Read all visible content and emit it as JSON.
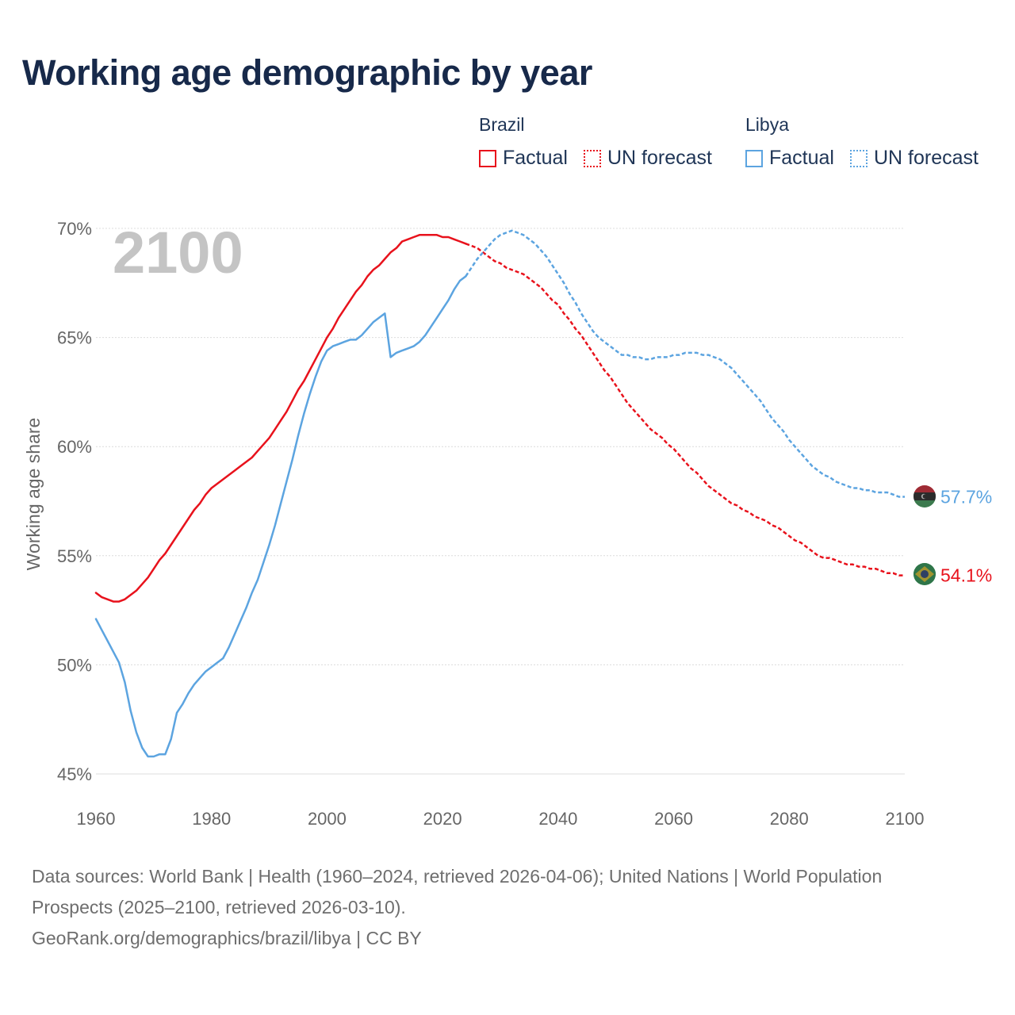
{
  "title": "Working age demographic by year",
  "legend": {
    "groups": [
      {
        "country": "Brazil",
        "color": "#e8121c",
        "factual_label": "Factual",
        "forecast_label": "UN forecast"
      },
      {
        "country": "Libya",
        "color": "#5ca4e0",
        "factual_label": "Factual",
        "forecast_label": "UN forecast"
      }
    ]
  },
  "footer": {
    "sources": "Data sources: World Bank | Health (1960–2024, retrieved 2026-04-06); United Nations | World Population Prospects (2025–2100, retrieved 2026-03-10).",
    "attribution": "GeoRank.org/demographics/brazil/libya | CC BY"
  },
  "chart_data": {
    "type": "line",
    "title": "Working age demographic by year",
    "xlabel": "",
    "ylabel": "Working age share",
    "current_year": "2100",
    "xlim": [
      1960,
      2100
    ],
    "ylim": [
      45,
      70
    ],
    "x_ticks": [
      1960,
      1980,
      2000,
      2020,
      2040,
      2060,
      2080,
      2100
    ],
    "y_ticks": [
      45,
      50,
      55,
      60,
      65,
      70
    ],
    "y_tick_labels": [
      "45%",
      "50%",
      "55%",
      "60%",
      "65%",
      "70%"
    ],
    "grid": true,
    "factual_end_year": 2024,
    "series": [
      {
        "name": "Brazil",
        "color": "#e8121c",
        "end_label": "54.1%",
        "points": [
          [
            1960,
            53.3
          ],
          [
            1961,
            53.1
          ],
          [
            1962,
            53.0
          ],
          [
            1963,
            52.9
          ],
          [
            1964,
            52.9
          ],
          [
            1965,
            53.0
          ],
          [
            1966,
            53.2
          ],
          [
            1967,
            53.4
          ],
          [
            1968,
            53.7
          ],
          [
            1969,
            54.0
          ],
          [
            1970,
            54.4
          ],
          [
            1971,
            54.8
          ],
          [
            1972,
            55.1
          ],
          [
            1973,
            55.5
          ],
          [
            1974,
            55.9
          ],
          [
            1975,
            56.3
          ],
          [
            1976,
            56.7
          ],
          [
            1977,
            57.1
          ],
          [
            1978,
            57.4
          ],
          [
            1979,
            57.8
          ],
          [
            1980,
            58.1
          ],
          [
            1981,
            58.3
          ],
          [
            1982,
            58.5
          ],
          [
            1983,
            58.7
          ],
          [
            1984,
            58.9
          ],
          [
            1985,
            59.1
          ],
          [
            1986,
            59.3
          ],
          [
            1987,
            59.5
          ],
          [
            1988,
            59.8
          ],
          [
            1989,
            60.1
          ],
          [
            1990,
            60.4
          ],
          [
            1991,
            60.8
          ],
          [
            1992,
            61.2
          ],
          [
            1993,
            61.6
          ],
          [
            1994,
            62.1
          ],
          [
            1995,
            62.6
          ],
          [
            1996,
            63.0
          ],
          [
            1997,
            63.5
          ],
          [
            1998,
            64.0
          ],
          [
            1999,
            64.5
          ],
          [
            2000,
            65.0
          ],
          [
            2001,
            65.4
          ],
          [
            2002,
            65.9
          ],
          [
            2003,
            66.3
          ],
          [
            2004,
            66.7
          ],
          [
            2005,
            67.1
          ],
          [
            2006,
            67.4
          ],
          [
            2007,
            67.8
          ],
          [
            2008,
            68.1
          ],
          [
            2009,
            68.3
          ],
          [
            2010,
            68.6
          ],
          [
            2011,
            68.9
          ],
          [
            2012,
            69.1
          ],
          [
            2013,
            69.4
          ],
          [
            2014,
            69.5
          ],
          [
            2015,
            69.6
          ],
          [
            2016,
            69.7
          ],
          [
            2017,
            69.7
          ],
          [
            2018,
            69.7
          ],
          [
            2019,
            69.7
          ],
          [
            2020,
            69.6
          ],
          [
            2021,
            69.6
          ],
          [
            2022,
            69.5
          ],
          [
            2023,
            69.4
          ],
          [
            2024,
            69.3
          ],
          [
            2025,
            69.2
          ],
          [
            2026,
            69.1
          ],
          [
            2027,
            68.9
          ],
          [
            2028,
            68.7
          ],
          [
            2029,
            68.5
          ],
          [
            2030,
            68.4
          ],
          [
            2031,
            68.2
          ],
          [
            2032,
            68.1
          ],
          [
            2033,
            68.0
          ],
          [
            2034,
            67.9
          ],
          [
            2035,
            67.7
          ],
          [
            2036,
            67.5
          ],
          [
            2037,
            67.3
          ],
          [
            2038,
            67.0
          ],
          [
            2039,
            66.7
          ],
          [
            2040,
            66.5
          ],
          [
            2041,
            66.1
          ],
          [
            2042,
            65.8
          ],
          [
            2043,
            65.4
          ],
          [
            2044,
            65.1
          ],
          [
            2045,
            64.7
          ],
          [
            2046,
            64.3
          ],
          [
            2047,
            63.9
          ],
          [
            2048,
            63.5
          ],
          [
            2049,
            63.2
          ],
          [
            2050,
            62.8
          ],
          [
            2051,
            62.4
          ],
          [
            2052,
            62.0
          ],
          [
            2053,
            61.7
          ],
          [
            2054,
            61.4
          ],
          [
            2055,
            61.1
          ],
          [
            2056,
            60.8
          ],
          [
            2057,
            60.6
          ],
          [
            2058,
            60.4
          ],
          [
            2059,
            60.1
          ],
          [
            2060,
            59.9
          ],
          [
            2061,
            59.6
          ],
          [
            2062,
            59.3
          ],
          [
            2063,
            59.0
          ],
          [
            2064,
            58.8
          ],
          [
            2065,
            58.5
          ],
          [
            2066,
            58.2
          ],
          [
            2067,
            58.0
          ],
          [
            2068,
            57.8
          ],
          [
            2069,
            57.6
          ],
          [
            2070,
            57.4
          ],
          [
            2071,
            57.3
          ],
          [
            2072,
            57.1
          ],
          [
            2073,
            57.0
          ],
          [
            2074,
            56.8
          ],
          [
            2075,
            56.7
          ],
          [
            2076,
            56.6
          ],
          [
            2077,
            56.4
          ],
          [
            2078,
            56.3
          ],
          [
            2079,
            56.1
          ],
          [
            2080,
            55.9
          ],
          [
            2081,
            55.7
          ],
          [
            2082,
            55.6
          ],
          [
            2083,
            55.4
          ],
          [
            2084,
            55.2
          ],
          [
            2085,
            55.0
          ],
          [
            2086,
            54.9
          ],
          [
            2087,
            54.9
          ],
          [
            2088,
            54.8
          ],
          [
            2089,
            54.7
          ],
          [
            2090,
            54.6
          ],
          [
            2091,
            54.6
          ],
          [
            2092,
            54.5
          ],
          [
            2093,
            54.5
          ],
          [
            2094,
            54.4
          ],
          [
            2095,
            54.4
          ],
          [
            2096,
            54.3
          ],
          [
            2097,
            54.2
          ],
          [
            2098,
            54.2
          ],
          [
            2099,
            54.1
          ],
          [
            2100,
            54.1
          ]
        ]
      },
      {
        "name": "Libya",
        "color": "#5ca4e0",
        "end_label": "57.7%",
        "points": [
          [
            1960,
            52.1
          ],
          [
            1961,
            51.6
          ],
          [
            1962,
            51.1
          ],
          [
            1963,
            50.6
          ],
          [
            1964,
            50.1
          ],
          [
            1965,
            49.2
          ],
          [
            1966,
            47.9
          ],
          [
            1967,
            46.9
          ],
          [
            1968,
            46.2
          ],
          [
            1969,
            45.8
          ],
          [
            1970,
            45.8
          ],
          [
            1971,
            45.9
          ],
          [
            1972,
            45.9
          ],
          [
            1973,
            46.6
          ],
          [
            1974,
            47.8
          ],
          [
            1975,
            48.2
          ],
          [
            1976,
            48.7
          ],
          [
            1977,
            49.1
          ],
          [
            1978,
            49.4
          ],
          [
            1979,
            49.7
          ],
          [
            1980,
            49.9
          ],
          [
            1981,
            50.1
          ],
          [
            1982,
            50.3
          ],
          [
            1983,
            50.8
          ],
          [
            1984,
            51.4
          ],
          [
            1985,
            52.0
          ],
          [
            1986,
            52.6
          ],
          [
            1987,
            53.3
          ],
          [
            1988,
            53.9
          ],
          [
            1989,
            54.7
          ],
          [
            1990,
            55.5
          ],
          [
            1991,
            56.4
          ],
          [
            1992,
            57.4
          ],
          [
            1993,
            58.4
          ],
          [
            1994,
            59.4
          ],
          [
            1995,
            60.5
          ],
          [
            1996,
            61.5
          ],
          [
            1997,
            62.4
          ],
          [
            1998,
            63.2
          ],
          [
            1999,
            63.9
          ],
          [
            2000,
            64.4
          ],
          [
            2001,
            64.6
          ],
          [
            2002,
            64.7
          ],
          [
            2003,
            64.8
          ],
          [
            2004,
            64.9
          ],
          [
            2005,
            64.9
          ],
          [
            2006,
            65.1
          ],
          [
            2007,
            65.4
          ],
          [
            2008,
            65.7
          ],
          [
            2009,
            65.9
          ],
          [
            2010,
            66.1
          ],
          [
            2011,
            64.1
          ],
          [
            2012,
            64.3
          ],
          [
            2013,
            64.4
          ],
          [
            2014,
            64.5
          ],
          [
            2015,
            64.6
          ],
          [
            2016,
            64.8
          ],
          [
            2017,
            65.1
          ],
          [
            2018,
            65.5
          ],
          [
            2019,
            65.9
          ],
          [
            2020,
            66.3
          ],
          [
            2021,
            66.7
          ],
          [
            2022,
            67.2
          ],
          [
            2023,
            67.6
          ],
          [
            2024,
            67.8
          ],
          [
            2025,
            68.2
          ],
          [
            2026,
            68.6
          ],
          [
            2027,
            68.9
          ],
          [
            2028,
            69.2
          ],
          [
            2029,
            69.5
          ],
          [
            2030,
            69.7
          ],
          [
            2031,
            69.8
          ],
          [
            2032,
            69.9
          ],
          [
            2033,
            69.8
          ],
          [
            2034,
            69.7
          ],
          [
            2035,
            69.5
          ],
          [
            2036,
            69.3
          ],
          [
            2037,
            69.0
          ],
          [
            2038,
            68.7
          ],
          [
            2039,
            68.3
          ],
          [
            2040,
            67.9
          ],
          [
            2041,
            67.5
          ],
          [
            2042,
            67.0
          ],
          [
            2043,
            66.6
          ],
          [
            2044,
            66.1
          ],
          [
            2045,
            65.7
          ],
          [
            2046,
            65.3
          ],
          [
            2047,
            65.0
          ],
          [
            2048,
            64.8
          ],
          [
            2049,
            64.6
          ],
          [
            2050,
            64.4
          ],
          [
            2051,
            64.2
          ],
          [
            2052,
            64.2
          ],
          [
            2053,
            64.1
          ],
          [
            2054,
            64.1
          ],
          [
            2055,
            64.0
          ],
          [
            2056,
            64.0
          ],
          [
            2057,
            64.1
          ],
          [
            2058,
            64.1
          ],
          [
            2059,
            64.1
          ],
          [
            2060,
            64.2
          ],
          [
            2061,
            64.2
          ],
          [
            2062,
            64.3
          ],
          [
            2063,
            64.3
          ],
          [
            2064,
            64.3
          ],
          [
            2065,
            64.2
          ],
          [
            2066,
            64.2
          ],
          [
            2067,
            64.1
          ],
          [
            2068,
            64.0
          ],
          [
            2069,
            63.8
          ],
          [
            2070,
            63.6
          ],
          [
            2071,
            63.3
          ],
          [
            2072,
            63.0
          ],
          [
            2073,
            62.7
          ],
          [
            2074,
            62.4
          ],
          [
            2075,
            62.1
          ],
          [
            2076,
            61.7
          ],
          [
            2077,
            61.3
          ],
          [
            2078,
            61.0
          ],
          [
            2079,
            60.7
          ],
          [
            2080,
            60.3
          ],
          [
            2081,
            60.0
          ],
          [
            2082,
            59.7
          ],
          [
            2083,
            59.4
          ],
          [
            2084,
            59.1
          ],
          [
            2085,
            58.9
          ],
          [
            2086,
            58.7
          ],
          [
            2087,
            58.6
          ],
          [
            2088,
            58.4
          ],
          [
            2089,
            58.3
          ],
          [
            2090,
            58.2
          ],
          [
            2091,
            58.1
          ],
          [
            2092,
            58.1
          ],
          [
            2093,
            58.0
          ],
          [
            2094,
            58.0
          ],
          [
            2095,
            57.9
          ],
          [
            2096,
            57.9
          ],
          [
            2097,
            57.9
          ],
          [
            2098,
            57.8
          ],
          [
            2099,
            57.7
          ],
          [
            2100,
            57.7
          ]
        ]
      }
    ]
  }
}
